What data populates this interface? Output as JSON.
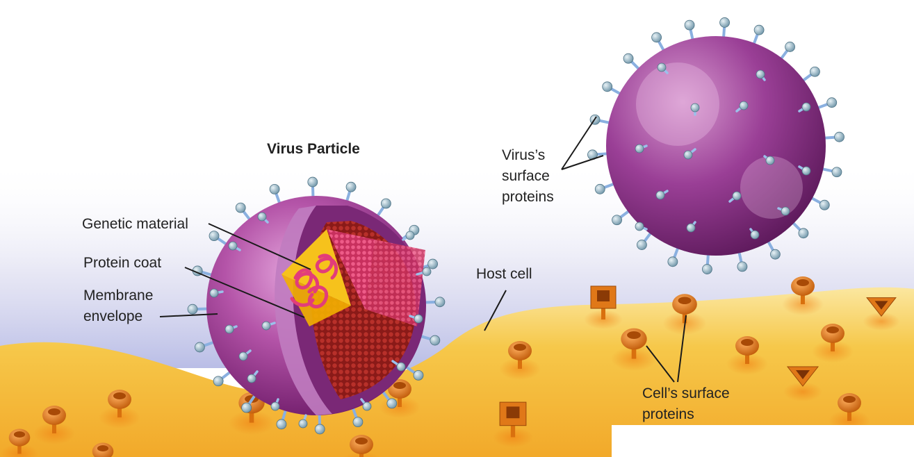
{
  "title": "Virus Particle",
  "labels": {
    "genetic_material": "Genetic material",
    "protein_coat": "Protein coat",
    "membrane_envelope": "Membrane\nenvelope",
    "host_cell": "Host cell",
    "virus_surface_proteins": "Virus’s\nsurface\nproteins",
    "cell_surface_proteins": "Cell’s surface\nproteins"
  },
  "colors": {
    "virus_envelope": "#8e2f86",
    "virus_envelope_light": "#c77cc2",
    "protein_coat": "#a0211f",
    "genetic_material": "#d8366c",
    "capsid_face": "#f5c21d",
    "host_cell": "#f4b52c",
    "host_cell_light": "#fbe39a",
    "background_haze": "#c8c9e8",
    "spike_stalk": "#8ab0e0",
    "spike_head": "#b0c4d0",
    "cell_protein": "#e07818"
  },
  "icons": [
    "virus-particle-icon",
    "host-cell-icon",
    "cell-receptor-icon",
    "virus-spike-icon"
  ]
}
